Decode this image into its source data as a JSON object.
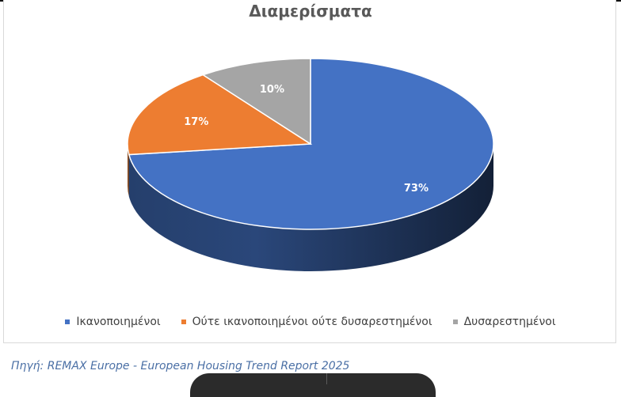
{
  "chart_data": {
    "type": "pie",
    "title": "Διαμερίσματα",
    "categories": [
      "Ικανοποιημένοι",
      "Ούτε ικανοποιημένοι ούτε δυσαρεστημένοι",
      "Δυσαρεστημένοι"
    ],
    "values": [
      73,
      17,
      10
    ],
    "data_labels": [
      "73%",
      "17%",
      "10%"
    ],
    "colors": [
      "#4472C4",
      "#ED7D31",
      "#A5A5A5"
    ],
    "style": "3d",
    "legend": "bottom"
  },
  "source": "Πηγή: REMAX Europe - European Housing Trend Report 2025"
}
